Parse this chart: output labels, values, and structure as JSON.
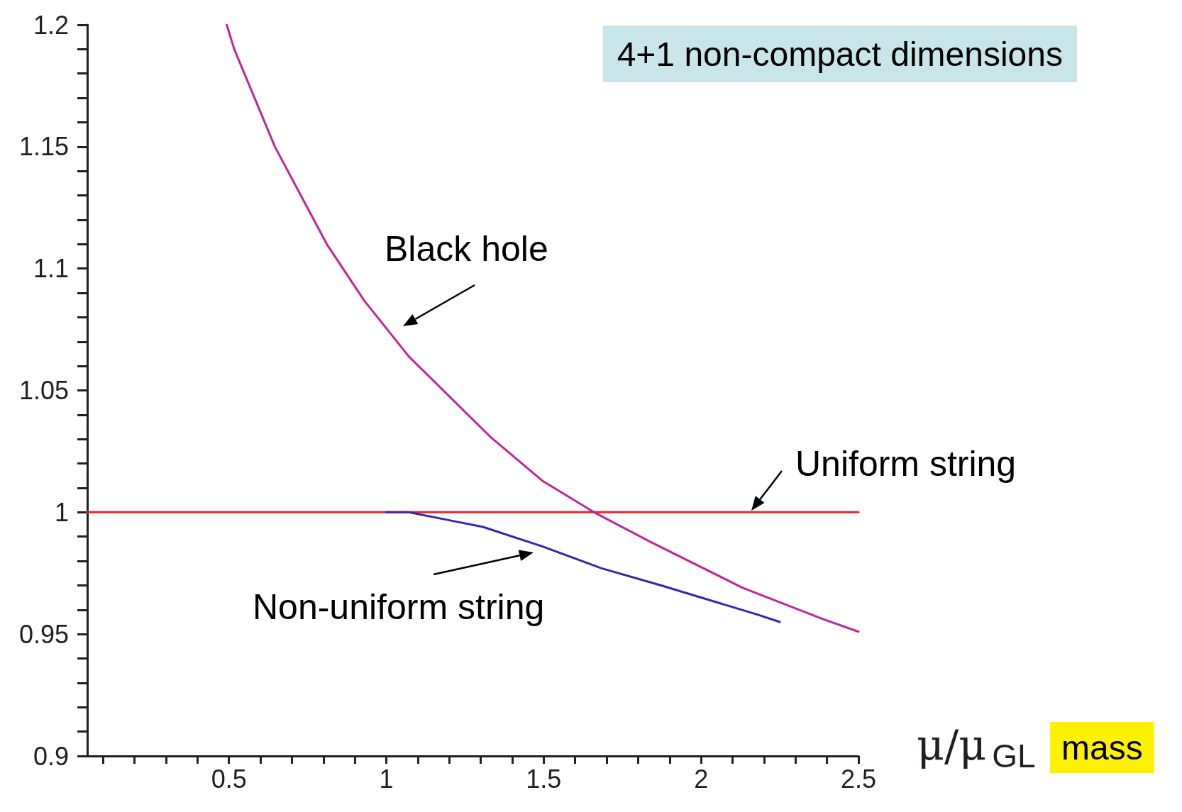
{
  "chart_data": {
    "type": "line",
    "title": "4+1 non-compact dimensions",
    "xlabel": "μ/μ$_{GL}$",
    "xlim": [
      0.05,
      2.5
    ],
    "xticks": [
      {
        "value": 0.1,
        "label": null
      },
      {
        "value": 0.2,
        "label": null
      },
      {
        "value": 0.3,
        "label": null
      },
      {
        "value": 0.4,
        "label": null
      },
      0.5,
      {
        "value": 0.6,
        "label": null
      },
      {
        "value": 0.7,
        "label": null
      },
      {
        "value": 0.8,
        "label": null
      },
      {
        "value": 0.9,
        "label": null
      },
      1,
      {
        "value": 1.1,
        "label": null
      },
      {
        "value": 1.2,
        "label": null
      },
      {
        "value": 1.3,
        "label": null
      },
      {
        "value": 1.4,
        "label": null
      },
      1.5,
      {
        "value": 1.6,
        "label": null
      },
      {
        "value": 1.7,
        "label": null
      },
      {
        "value": 1.8,
        "label": null
      },
      {
        "value": 1.9,
        "label": null
      },
      2,
      {
        "value": 2.1,
        "label": null
      },
      {
        "value": 2.2,
        "label": null
      },
      {
        "value": 2.3,
        "label": null
      },
      {
        "value": 2.4,
        "label": null
      },
      2.5
    ],
    "ylim": [
      0.9,
      1.2
    ],
    "yticks": [
      0.9,
      {
        "value": 0.91,
        "label": null
      },
      {
        "value": 0.92,
        "label": null
      },
      {
        "value": 0.93,
        "label": null
      },
      {
        "value": 0.94,
        "label": null
      },
      0.95,
      {
        "value": 0.96,
        "label": null
      },
      {
        "value": 0.97,
        "label": null
      },
      {
        "value": 0.98,
        "label": null
      },
      {
        "value": 0.99,
        "label": null
      },
      1,
      {
        "value": 1.01,
        "label": null
      },
      {
        "value": 1.02,
        "label": null
      },
      {
        "value": 1.03,
        "label": null
      },
      {
        "value": 1.04,
        "label": null
      },
      1.05,
      {
        "value": 1.06,
        "label": null
      },
      {
        "value": 1.07,
        "label": null
      },
      {
        "value": 1.08,
        "label": null
      },
      {
        "value": 1.09,
        "label": null
      },
      1.1,
      {
        "value": 1.11,
        "label": null
      },
      {
        "value": 1.12,
        "label": null
      },
      {
        "value": 1.13,
        "label": null
      },
      {
        "value": 1.14,
        "label": null
      },
      1.15,
      {
        "value": 1.16,
        "label": null
      },
      {
        "value": 1.17,
        "label": null
      },
      {
        "value": 1.18,
        "label": null
      },
      {
        "value": 1.19,
        "label": null
      },
      1.2
    ],
    "grid": false,
    "marker": "none",
    "line_style": "solid",
    "series": [
      {
        "color": "#c0269a",
        "x": [
          0.493,
          0.517,
          0.646,
          0.811,
          0.929,
          1.071,
          1.33,
          1.495,
          1.66,
          1.837,
          2.132,
          2.391,
          2.5
        ],
        "values": [
          1.2,
          1.19,
          1.15,
          1.11,
          1.087,
          1.064,
          1.031,
          1.013,
          1.0,
          0.988,
          0.969,
          0.956,
          0.951
        ]
      },
      {
        "color": "#3a25a8",
        "x": [
          1.0,
          1.071,
          1.189,
          1.307,
          1.495,
          1.684,
          1.873,
          2.179,
          2.25
        ],
        "values": [
          1.0,
          1.0,
          0.997,
          0.994,
          0.986,
          0.977,
          0.97,
          0.958,
          0.955
        ]
      },
      {
        "color": "#ee2222",
        "x": [
          0.05,
          2.5
        ],
        "values": [
          1.0,
          1.0
        ]
      }
    ],
    "annotations": [
      "Black hole",
      "Uniform string",
      "Non-uniform string",
      "mass"
    ]
  }
}
